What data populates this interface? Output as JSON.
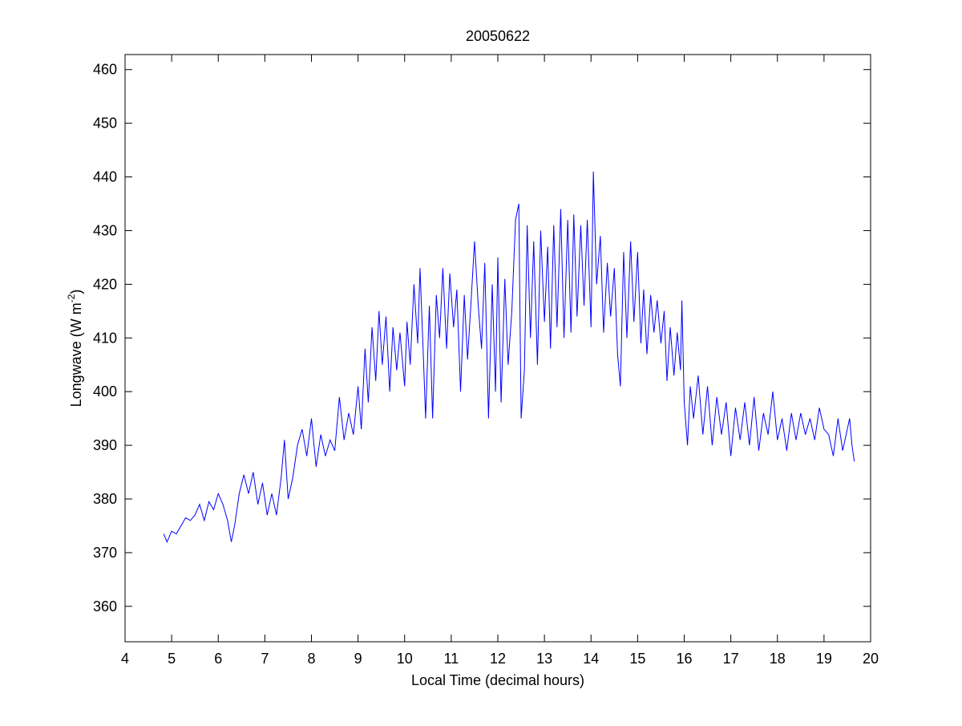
{
  "chart_data": {
    "type": "line",
    "title": "20050622",
    "x_label": "Local Time (decimal hours)",
    "y_label": "Longwave (W m",
    "y_label_sup": "-2",
    "y_label_end": ")",
    "xlim": [
      4,
      20
    ],
    "xticks": [
      4,
      5,
      6,
      7,
      8,
      9,
      10,
      11,
      12,
      13,
      14,
      15,
      16,
      17,
      18,
      19,
      20
    ],
    "ylim": [
      353.4,
      462.8
    ],
    "yticks": [
      360,
      370,
      380,
      390,
      400,
      410,
      420,
      430,
      440,
      450,
      460
    ],
    "grid": false,
    "series": [
      {
        "color": "#0000ff",
        "x": [
          4.83,
          4.9,
          5.0,
          5.1,
          5.2,
          5.3,
          5.4,
          5.5,
          5.6,
          5.7,
          5.8,
          5.9,
          6.0,
          6.1,
          6.2,
          6.28,
          6.35,
          6.45,
          6.55,
          6.65,
          6.75,
          6.85,
          6.95,
          7.05,
          7.15,
          7.25,
          7.35,
          7.42,
          7.5,
          7.6,
          7.7,
          7.8,
          7.9,
          8.0,
          8.1,
          8.2,
          8.3,
          8.4,
          8.5,
          8.6,
          8.7,
          8.8,
          8.9,
          9.0,
          9.07,
          9.15,
          9.22,
          9.3,
          9.38,
          9.45,
          9.52,
          9.6,
          9.68,
          9.75,
          9.83,
          9.9,
          10.0,
          10.05,
          10.12,
          10.2,
          10.28,
          10.33,
          10.4,
          10.45,
          10.53,
          10.6,
          10.68,
          10.75,
          10.82,
          10.9,
          10.97,
          11.05,
          11.12,
          11.2,
          11.28,
          11.35,
          11.42,
          11.5,
          11.58,
          11.65,
          11.72,
          11.8,
          11.88,
          11.95,
          12.0,
          12.07,
          12.15,
          12.22,
          12.3,
          12.38,
          12.45,
          12.5,
          12.57,
          12.63,
          12.7,
          12.77,
          12.85,
          12.92,
          13.0,
          13.07,
          13.13,
          13.2,
          13.27,
          13.35,
          13.42,
          13.5,
          13.57,
          13.63,
          13.7,
          13.78,
          13.85,
          13.92,
          14.0,
          14.05,
          14.12,
          14.2,
          14.27,
          14.35,
          14.42,
          14.5,
          14.57,
          14.63,
          14.7,
          14.77,
          14.85,
          14.92,
          15.0,
          15.07,
          15.13,
          15.2,
          15.28,
          15.35,
          15.42,
          15.5,
          15.57,
          15.63,
          15.7,
          15.78,
          15.85,
          15.92,
          15.95,
          16.0,
          16.07,
          16.13,
          16.2,
          16.3,
          16.4,
          16.5,
          16.6,
          16.7,
          16.8,
          16.9,
          17.0,
          17.1,
          17.2,
          17.3,
          17.4,
          17.5,
          17.6,
          17.7,
          17.8,
          17.9,
          18.0,
          18.1,
          18.2,
          18.3,
          18.4,
          18.5,
          18.6,
          18.7,
          18.8,
          18.9,
          19.0,
          19.1,
          19.2,
          19.3,
          19.4,
          19.5,
          19.55,
          19.6,
          19.65
        ],
        "values": [
          373.5,
          372,
          374,
          373.5,
          375,
          376.5,
          376,
          377,
          379,
          376,
          379.5,
          378,
          381,
          379,
          376,
          372,
          375,
          381,
          384.5,
          381,
          385,
          379,
          383,
          377,
          381,
          377,
          384,
          391,
          380,
          384,
          390,
          393,
          388,
          395,
          386,
          392,
          388,
          391,
          389,
          399,
          391,
          396,
          392,
          401,
          393,
          408,
          398,
          412,
          402,
          415,
          405,
          414,
          400,
          412,
          404,
          411,
          401,
          413,
          405,
          420,
          409,
          423,
          407,
          395,
          416,
          395,
          418,
          410,
          423,
          408,
          422,
          412,
          419,
          400,
          418,
          406,
          416,
          428,
          416,
          408,
          424,
          395,
          420,
          400,
          425,
          398,
          421,
          405,
          415,
          432,
          435,
          395,
          404,
          431,
          410,
          428,
          405,
          430,
          413,
          427,
          408,
          431,
          412,
          434,
          410,
          432,
          411,
          433,
          414,
          431,
          416,
          432,
          412,
          441,
          420,
          429,
          411,
          424,
          414,
          423,
          407,
          401,
          426,
          410,
          428,
          413,
          426,
          409,
          419,
          407,
          418,
          411,
          417,
          409,
          415,
          402,
          412,
          403,
          411,
          404,
          417,
          398,
          390,
          401,
          395,
          403,
          392,
          401,
          390,
          399,
          392,
          398,
          388,
          397,
          391,
          398,
          390,
          399,
          389,
          396,
          392,
          400,
          391,
          395,
          389,
          396,
          391,
          396,
          392,
          395,
          391,
          397,
          393,
          392,
          388,
          395,
          389,
          393,
          395,
          390,
          387
        ]
      }
    ]
  }
}
